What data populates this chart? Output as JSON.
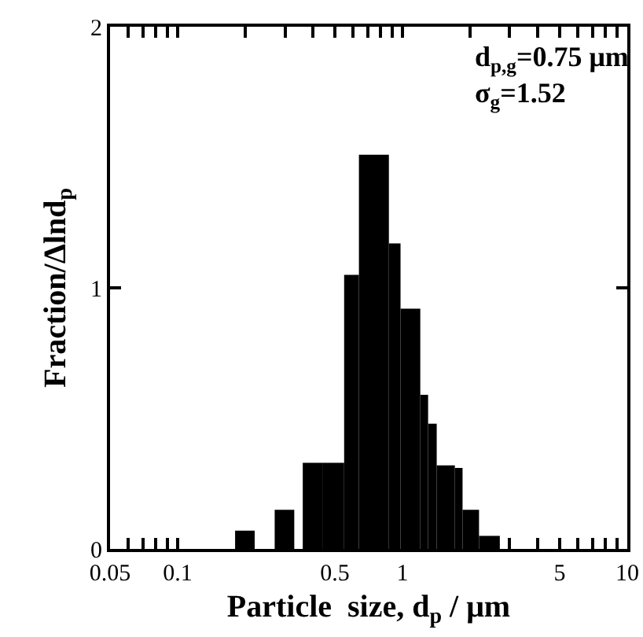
{
  "chart_data": {
    "type": "histogram",
    "xlabel": "Particle  size, d$_{p}$ / μm",
    "ylabel": "Fraction/Δlnd$_{p}$",
    "annotations": [
      "d$_{p,g}$=0.75 μm",
      "σ$_{g}$=1.52"
    ],
    "bins": [
      0.18,
      0.22,
      0.27,
      0.33,
      0.36,
      0.44,
      0.55,
      0.64,
      0.87,
      0.98,
      1.2,
      1.3,
      1.42,
      1.71,
      1.85,
      2.19,
      2.71
    ],
    "values": [
      0.07,
      0,
      0.15,
      0,
      0.33,
      0.33,
      1.05,
      1.51,
      1.17,
      0.92,
      0.59,
      0.48,
      0.32,
      0.31,
      0.15,
      0.05
    ],
    "color": "#000000",
    "log": "x",
    "xlim": [
      0.05,
      10
    ],
    "xticks": [
      0.05,
      {
        "value": 0.06,
        "label": null
      },
      {
        "value": 0.07,
        "label": null
      },
      {
        "value": 0.08,
        "label": null
      },
      {
        "value": 0.09,
        "label": null
      },
      0.1,
      {
        "value": 0.2,
        "label": null
      },
      {
        "value": 0.3,
        "label": null
      },
      {
        "value": 0.4,
        "label": null
      },
      0.5,
      {
        "value": 0.6,
        "label": null
      },
      {
        "value": 0.7,
        "label": null
      },
      {
        "value": 0.8,
        "label": null
      },
      {
        "value": 0.9,
        "label": null
      },
      1,
      {
        "value": 2,
        "label": null
      },
      {
        "value": 3,
        "label": null
      },
      {
        "value": 4,
        "label": null
      },
      5,
      {
        "value": 6,
        "label": null
      },
      {
        "value": 7,
        "label": null
      },
      {
        "value": 8,
        "label": null
      },
      {
        "value": 9,
        "label": null
      },
      10
    ],
    "ylim": [
      0,
      2
    ],
    "yticks": [
      0,
      1,
      2
    ]
  }
}
